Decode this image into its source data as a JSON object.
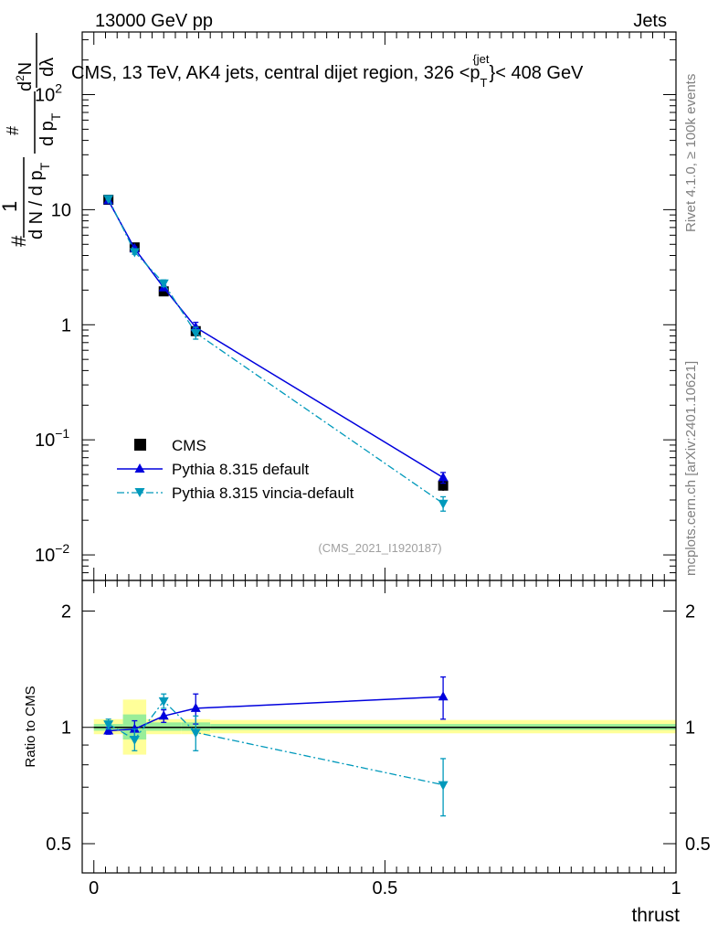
{
  "header": {
    "energy_label": "13000 GeV pp",
    "category_label": "Jets"
  },
  "side_labels": {
    "rivet": "Rivet 4.1.0, ≥ 100k events",
    "mcplots": "mcplots.cern.ch [arXiv:2401.10621]"
  },
  "plot_title": "CMS, 13 TeV, AK4 jets, central dijet region, 326 <p",
  "plot_title_sub": "T",
  "plot_title_sup": "{jet",
  "plot_title_mid": "}",
  "plot_title_end": "< 408 GeV",
  "analysis_id": "(CMS_2021_I1920187)",
  "y_axis_label": {
    "num1": "1",
    "den_main": "d N / d p",
    "den_sub": "T",
    "hash": "#",
    "num2": "#",
    "den2": "d p",
    "den2_sub": "T",
    "num3": "d",
    "num3_sup": "2",
    "num3_end": "N",
    "den3": "dλ"
  },
  "ratio_axis_label": "Ratio to CMS",
  "x_axis_label": "thrust",
  "colors": {
    "cms": "#000000",
    "pythia_default": "#0000dd",
    "pythia_vincia": "#0099bb",
    "band_inner": "#99ee99",
    "band_outer": "#ffff99"
  },
  "chart_data": [
    {
      "type": "line",
      "name": "main",
      "yscale": "log",
      "xlim": [
        -0.02,
        1.0
      ],
      "ylim": [
        0.006,
        350
      ],
      "yticks": [
        0.01,
        0.1,
        1,
        10,
        100
      ],
      "ytick_labels": [
        {
          "base": "10",
          "exp": "−2"
        },
        {
          "base": "10",
          "exp": "−1"
        },
        {
          "base": "1",
          "exp": ""
        },
        {
          "base": "10",
          "exp": ""
        },
        {
          "base": "10",
          "exp": "2"
        }
      ],
      "legend_position": "lower-left",
      "series": [
        {
          "name": "CMS",
          "style": "points",
          "x": [
            0.025,
            0.07,
            0.12,
            0.175,
            0.6
          ],
          "y": [
            12.2,
            4.7,
            1.95,
            0.88,
            0.04
          ],
          "yerr_lo": [
            0.4,
            0.2,
            0.1,
            0.05,
            0.004
          ],
          "yerr_hi": [
            0.4,
            0.2,
            0.1,
            0.05,
            0.004
          ],
          "xerr": [
            0.02,
            0.025,
            0.025,
            0.03,
            0.4
          ]
        },
        {
          "name": "Pythia 8.315 default",
          "style": "solid",
          "x": [
            0.025,
            0.07,
            0.12,
            0.175,
            0.6
          ],
          "y": [
            12.0,
            4.6,
            2.1,
            0.95,
            0.047
          ],
          "yerr_lo": [
            0.3,
            0.15,
            0.1,
            0.1,
            0.005
          ],
          "yerr_hi": [
            0.3,
            0.15,
            0.1,
            0.1,
            0.005
          ]
        },
        {
          "name": "Pythia 8.315 vincia-default",
          "style": "dashdot",
          "x": [
            0.025,
            0.07,
            0.12,
            0.175,
            0.6
          ],
          "y": [
            12.5,
            4.3,
            2.3,
            0.85,
            0.028
          ],
          "yerr_lo": [
            0.3,
            0.2,
            0.15,
            0.1,
            0.004
          ],
          "yerr_hi": [
            0.3,
            0.2,
            0.15,
            0.1,
            0.004
          ]
        }
      ]
    },
    {
      "type": "line",
      "name": "ratio",
      "yscale": "log",
      "xlim": [
        -0.02,
        1.0
      ],
      "ylim": [
        0.42,
        2.4
      ],
      "yticks": [
        0.5,
        1,
        2
      ],
      "ytick_labels": [
        "0.5",
        "1",
        "2"
      ],
      "xticks": [
        0,
        0.5,
        1
      ],
      "xtick_labels": [
        "0",
        "0.5",
        "1"
      ],
      "bands": {
        "x_edges": [
          0.0,
          0.05,
          0.09,
          0.15,
          0.2,
          1.0
        ],
        "inner_lo": [
          0.98,
          0.93,
          0.98,
          0.98,
          0.985
        ],
        "inner_hi": [
          1.02,
          1.08,
          1.03,
          1.03,
          1.02
        ],
        "outer_lo": [
          0.96,
          0.85,
          0.96,
          0.96,
          0.965
        ],
        "outer_hi": [
          1.05,
          1.18,
          1.05,
          1.05,
          1.045
        ]
      },
      "series": [
        {
          "name": "Pythia 8.315 default",
          "style": "solid",
          "x": [
            0.025,
            0.07,
            0.12,
            0.175,
            0.6
          ],
          "y": [
            0.98,
            0.99,
            1.07,
            1.12,
            1.2
          ],
          "yerr_lo": [
            0.02,
            0.05,
            0.04,
            0.1,
            0.15
          ],
          "yerr_hi": [
            0.02,
            0.05,
            0.04,
            0.1,
            0.15
          ]
        },
        {
          "name": "Pythia 8.315 vincia-default",
          "style": "dashdot",
          "x": [
            0.025,
            0.07,
            0.12,
            0.175,
            0.6
          ],
          "y": [
            1.02,
            0.93,
            1.17,
            0.97,
            0.71
          ],
          "yerr_lo": [
            0.03,
            0.06,
            0.05,
            0.1,
            0.12
          ],
          "yerr_hi": [
            0.03,
            0.06,
            0.05,
            0.1,
            0.12
          ]
        }
      ]
    }
  ]
}
